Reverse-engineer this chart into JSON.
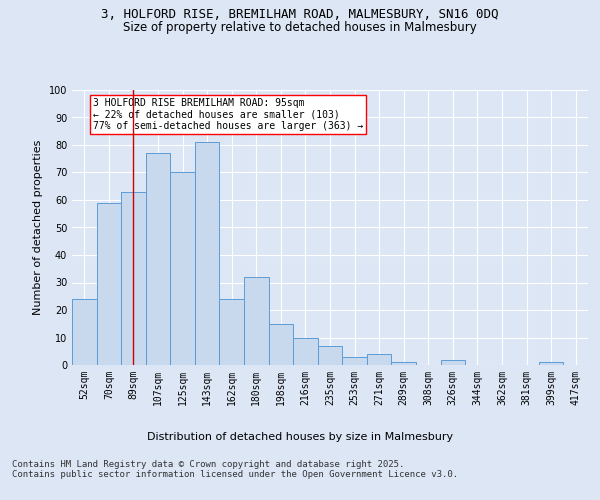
{
  "title_line1": "3, HOLFORD RISE, BREMILHAM ROAD, MALMESBURY, SN16 0DQ",
  "title_line2": "Size of property relative to detached houses in Malmesbury",
  "xlabel": "Distribution of detached houses by size in Malmesbury",
  "ylabel": "Number of detached properties",
  "bar_color": "#c9d9ed",
  "bar_edge_color": "#5b9bd5",
  "categories": [
    "52sqm",
    "70sqm",
    "89sqm",
    "107sqm",
    "125sqm",
    "143sqm",
    "162sqm",
    "180sqm",
    "198sqm",
    "216sqm",
    "235sqm",
    "253sqm",
    "271sqm",
    "289sqm",
    "308sqm",
    "326sqm",
    "344sqm",
    "362sqm",
    "381sqm",
    "399sqm",
    "417sqm"
  ],
  "values": [
    24,
    59,
    63,
    77,
    70,
    81,
    24,
    32,
    15,
    10,
    7,
    3,
    4,
    1,
    0,
    2,
    0,
    0,
    0,
    1,
    0
  ],
  "ylim": [
    0,
    100
  ],
  "yticks": [
    0,
    10,
    20,
    30,
    40,
    50,
    60,
    70,
    80,
    90,
    100
  ],
  "vline_x": 2.0,
  "vline_color": "#cc0000",
  "annotation_text": "3 HOLFORD RISE BREMILHAM ROAD: 95sqm\n← 22% of detached houses are smaller (103)\n77% of semi-detached houses are larger (363) →",
  "footer": "Contains HM Land Registry data © Crown copyright and database right 2025.\nContains public sector information licensed under the Open Government Licence v3.0.",
  "background_color": "#dce6f5",
  "plot_bg_color": "#dce6f5",
  "grid_color": "#ffffff",
  "title_fontsize": 9,
  "subtitle_fontsize": 8.5,
  "axis_label_fontsize": 8,
  "tick_fontsize": 7,
  "footer_fontsize": 6.5
}
